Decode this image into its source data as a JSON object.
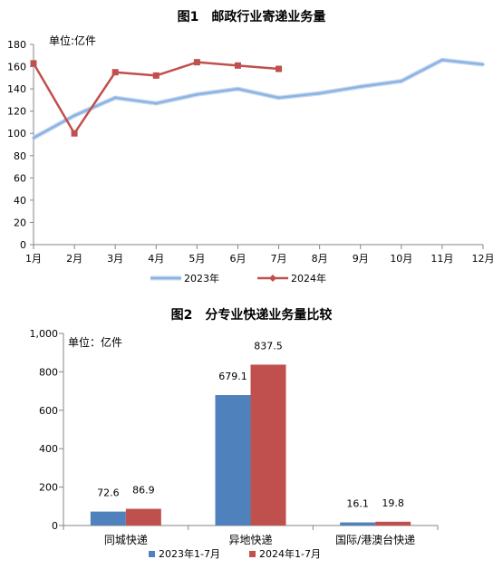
{
  "chart_data": [
    {
      "type": "line",
      "title": "图1　邮政行业寄递业务量",
      "unit_label": "单位:亿件",
      "categories": [
        "1月",
        "2月",
        "3月",
        "4月",
        "5月",
        "6月",
        "7月",
        "8月",
        "9月",
        "10月",
        "11月",
        "12月"
      ],
      "ylim": [
        0,
        180
      ],
      "yticks": [
        0,
        20,
        40,
        60,
        80,
        100,
        120,
        140,
        160,
        180
      ],
      "grid": false,
      "legend_position": "bottom",
      "series": [
        {
          "name": "2023年",
          "color": "#8db3e2",
          "values": [
            96,
            116,
            132,
            127,
            135,
            140,
            132,
            136,
            142,
            147,
            166,
            162
          ]
        },
        {
          "name": "2024年",
          "color": "#c0504d",
          "values": [
            163,
            100,
            155,
            152,
            164,
            161,
            158,
            null,
            null,
            null,
            null,
            null
          ]
        }
      ]
    },
    {
      "type": "bar",
      "title": "图2　分专业快递业务量比较",
      "unit_label": "单位：亿件",
      "categories": [
        "同城快递",
        "异地快递",
        "国际/港澳台快递"
      ],
      "ylim": [
        0,
        1000
      ],
      "yticks": [
        0,
        200,
        400,
        600,
        800,
        1000
      ],
      "ytick_labels": [
        "0",
        "200",
        "400",
        "600",
        "800",
        "1,000"
      ],
      "grid": false,
      "legend_position": "bottom",
      "series": [
        {
          "name": "2023年1-7月",
          "color": "#4f81bd",
          "values": [
            72.6,
            679.1,
            16.1
          ],
          "labels": [
            "72.6",
            "679.1",
            "16.1"
          ]
        },
        {
          "name": "2024年1-7月",
          "color": "#c0504d",
          "values": [
            86.9,
            837.5,
            19.8
          ],
          "labels": [
            "86.9",
            "837.5",
            "19.8"
          ]
        }
      ]
    }
  ]
}
